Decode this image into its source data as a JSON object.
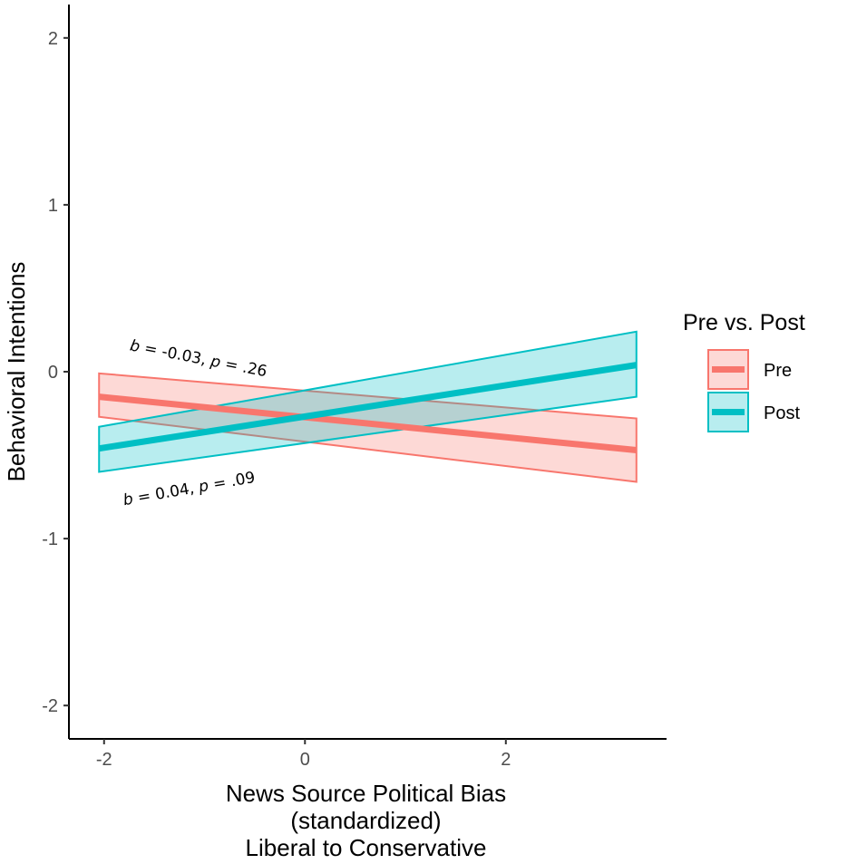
{
  "chart_data": {
    "type": "line",
    "xlabel_lines": [
      "News Source Political Bias",
      "(standardized)",
      "Liberal to Conservative"
    ],
    "ylabel": "Behavioral Intentions",
    "xlim": [
      -2.35,
      3.6
    ],
    "ylim": [
      -2.2,
      2.2
    ],
    "x_ticks": [
      -2,
      0,
      2
    ],
    "y_ticks": [
      -2,
      -1,
      0,
      1,
      2
    ],
    "x_tick_labels": [
      "-2",
      "0",
      "2"
    ],
    "y_tick_labels": [
      "-2",
      "-1",
      "0",
      "1",
      "2"
    ],
    "grid": false,
    "legend": {
      "title": "Pre vs. Post",
      "position": "right"
    },
    "series": [
      {
        "name": "Pre",
        "color": "#F8766D",
        "fill": "#F8766D",
        "x": [
          -2.05,
          3.3
        ],
        "y": [
          -0.15,
          -0.47
        ],
        "ci_lower": [
          -0.27,
          -0.66
        ],
        "ci_upper": [
          -0.01,
          -0.28
        ]
      },
      {
        "name": "Post",
        "color": "#00BFC4",
        "fill": "#00BFC4",
        "x": [
          -2.05,
          3.3
        ],
        "y": [
          -0.46,
          0.04
        ],
        "ci_lower": [
          -0.6,
          -0.15
        ],
        "ci_upper": [
          -0.33,
          0.24
        ]
      }
    ],
    "annotations": [
      {
        "label": "b = -0.03, p = .26",
        "b_label": "b",
        "b_value": " = -0.03, ",
        "p_label": "p",
        "p_value": " = .26",
        "x": -1.75,
        "y": 0.13,
        "angle": 11
      },
      {
        "label": "b = 0.04, p = .09",
        "b_label": "b",
        "b_value": " = 0.04, ",
        "p_label": "p",
        "p_value": " = .09",
        "x": -1.8,
        "y": -0.8,
        "angle": -10
      }
    ]
  }
}
